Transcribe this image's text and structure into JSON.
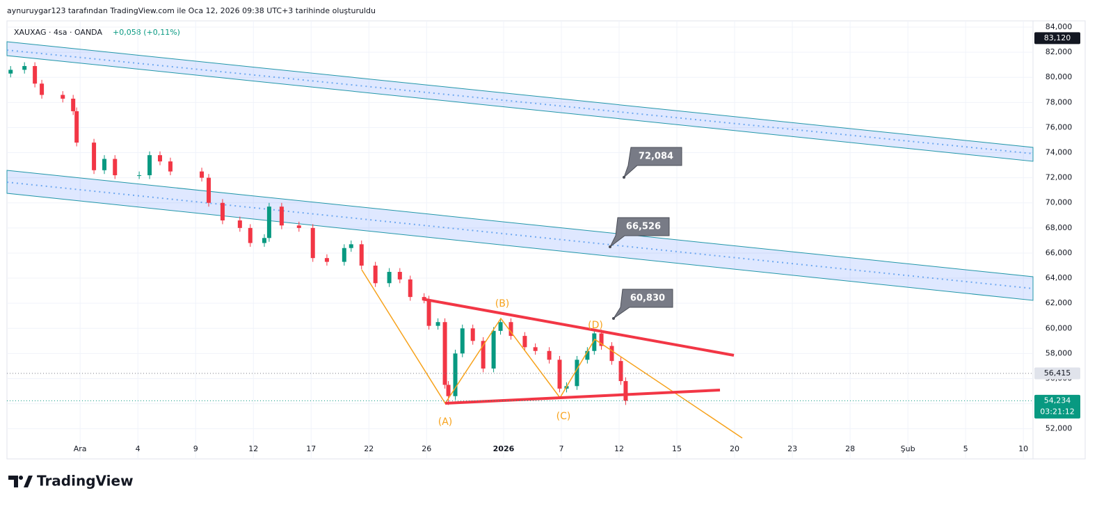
{
  "header": {
    "caption": "aynuruygar123 tarafından TradingView.com ile Oca 12, 2026 09:38 UTC+3 tarihinde oluşturuldu",
    "logo": "TradingView"
  },
  "chart_data": {
    "type": "candlestick",
    "title": "XAUXAG · 4sa · OANDA",
    "change": "+0,058 (+0,11%)",
    "up_color": "#089981",
    "down_color": "#f23645",
    "x": [
      -3.61,
      -2.89,
      -2.35,
      -1.99,
      -0.9,
      -0.36,
      -0.18,
      0.72,
      1.26,
      1.81,
      3.07,
      3.61,
      4.15,
      4.69,
      6.32,
      6.68,
      7.4,
      8.3,
      8.84,
      9.57,
      9.82,
      10.47,
      11.37,
      12.09,
      12.82,
      13.72,
      14.08,
      14.62,
      15.34,
      16.06,
      16.61,
      17.15,
      17.87,
      18.12,
      18.59,
      18.95,
      19.13,
      19.49,
      19.86,
      20.4,
      20.94,
      21.48,
      21.84,
      22.38,
      23.1,
      23.65,
      24.37,
      24.91,
      25.27,
      25.81,
      26.35,
      26.71,
      27.08,
      27.62,
      28.09,
      28.34
    ],
    "open": [
      80300,
      80600,
      80900,
      79500,
      78600,
      78300,
      77300,
      74800,
      72600,
      73500,
      72200,
      72200,
      73800,
      73300,
      72500,
      72000,
      70000,
      68600,
      68000,
      66800,
      67200,
      69700,
      68200,
      68000,
      65600,
      65300,
      66400,
      66700,
      65000,
      63600,
      64500,
      63900,
      62500,
      62300,
      60200,
      60500,
      55500,
      54600,
      58000,
      60000,
      59000,
      56800,
      59800,
      60500,
      59400,
      58500,
      58200,
      57500,
      55200,
      55400,
      57500,
      58200,
      59600,
      58600,
      57400,
      55800
    ],
    "high": [
      80900,
      81200,
      81200,
      79800,
      78900,
      78600,
      77600,
      75100,
      73800,
      73800,
      72500,
      74100,
      74100,
      73600,
      72800,
      72300,
      70300,
      68900,
      68300,
      67500,
      70000,
      70000,
      68500,
      68300,
      65900,
      66700,
      67000,
      67000,
      65300,
      64800,
      64800,
      64200,
      62800,
      62600,
      60800,
      60800,
      55800,
      58300,
      60300,
      60300,
      59300,
      60100,
      60800,
      60800,
      59700,
      58800,
      58500,
      57800,
      55700,
      57800,
      58500,
      59900,
      59900,
      58900,
      57700,
      56100
    ],
    "low": [
      80000,
      80300,
      79200,
      78300,
      78000,
      77000,
      74500,
      72300,
      72300,
      71900,
      71900,
      71900,
      73000,
      72200,
      71700,
      69700,
      68300,
      67700,
      66500,
      66500,
      66900,
      67900,
      67700,
      65300,
      65000,
      65000,
      66100,
      64700,
      63300,
      63300,
      63600,
      62200,
      62000,
      59900,
      59900,
      55200,
      53900,
      54300,
      57700,
      58700,
      56500,
      56500,
      59500,
      59100,
      58200,
      57900,
      57200,
      54900,
      54900,
      55100,
      57200,
      57900,
      58300,
      57100,
      55500,
      53900
    ],
    "close": [
      80600,
      80900,
      79500,
      78600,
      78300,
      77300,
      74800,
      72600,
      73500,
      72200,
      72200,
      73800,
      73300,
      72500,
      72000,
      70000,
      68600,
      68000,
      66800,
      67200,
      69700,
      68200,
      68000,
      65600,
      65300,
      66400,
      66700,
      65000,
      63600,
      64500,
      63900,
      62500,
      62300,
      60200,
      60500,
      55500,
      54600,
      58000,
      60000,
      59000,
      56800,
      59800,
      60500,
      59400,
      58500,
      58200,
      57500,
      55200,
      55400,
      57500,
      58200,
      59600,
      58600,
      57400,
      55800,
      54234
    ],
    "xlim": [
      -3.8,
      49.5
    ],
    "xticks": [
      {
        "value": 0,
        "label": "Ara"
      },
      {
        "value": 3,
        "label": "4"
      },
      {
        "value": 6,
        "label": "9"
      },
      {
        "value": 9,
        "label": "12"
      },
      {
        "value": 12,
        "label": "17"
      },
      {
        "value": 15,
        "label": "22"
      },
      {
        "value": 18,
        "label": "26"
      },
      {
        "value": 22,
        "label": "2026"
      },
      {
        "value": 25,
        "label": "7"
      },
      {
        "value": 28,
        "label": "12"
      },
      {
        "value": 31,
        "label": "15"
      },
      {
        "value": 34,
        "label": "20"
      },
      {
        "value": 37,
        "label": "23"
      },
      {
        "value": 40,
        "label": "28"
      },
      {
        "value": 43,
        "label": "Şub"
      },
      {
        "value": 46,
        "label": "5"
      },
      {
        "value": 49,
        "label": "10"
      }
    ],
    "ylim": [
      49600,
      84500
    ],
    "yticks": [
      {
        "value": 52000,
        "label": "52,000"
      },
      {
        "value": 54000,
        "label": "54,000"
      },
      {
        "value": 56000,
        "label": "56,000"
      },
      {
        "value": 58000,
        "label": "58,000"
      },
      {
        "value": 60000,
        "label": "60,000"
      },
      {
        "value": 62000,
        "label": "62,000"
      },
      {
        "value": 64000,
        "label": "64,000"
      },
      {
        "value": 66000,
        "label": "66,000"
      },
      {
        "value": 68000,
        "label": "68,000"
      },
      {
        "value": 70000,
        "label": "70,000"
      },
      {
        "value": 72000,
        "label": "72,000"
      },
      {
        "value": 74000,
        "label": "74,000"
      },
      {
        "value": 76000,
        "label": "76,000"
      },
      {
        "value": 78000,
        "label": "78,000"
      },
      {
        "value": 80000,
        "label": "80,000"
      },
      {
        "value": 82000,
        "label": "82,000"
      },
      {
        "value": 84000,
        "label": "84,000"
      }
    ],
    "price_badges": [
      {
        "value": 83120,
        "label": "83,120",
        "color": "#131722"
      },
      {
        "value": 56415,
        "label": "56,415",
        "color": "#e0e3eb"
      },
      {
        "value": 54234,
        "label": "54,234",
        "color": "#089981"
      }
    ],
    "countdown": "03:21:12",
    "annotations": [
      "72,084",
      "66,526",
      "60,830"
    ],
    "wave_labels": [
      "(A)",
      "(B)",
      "(C)",
      "(D)"
    ]
  }
}
